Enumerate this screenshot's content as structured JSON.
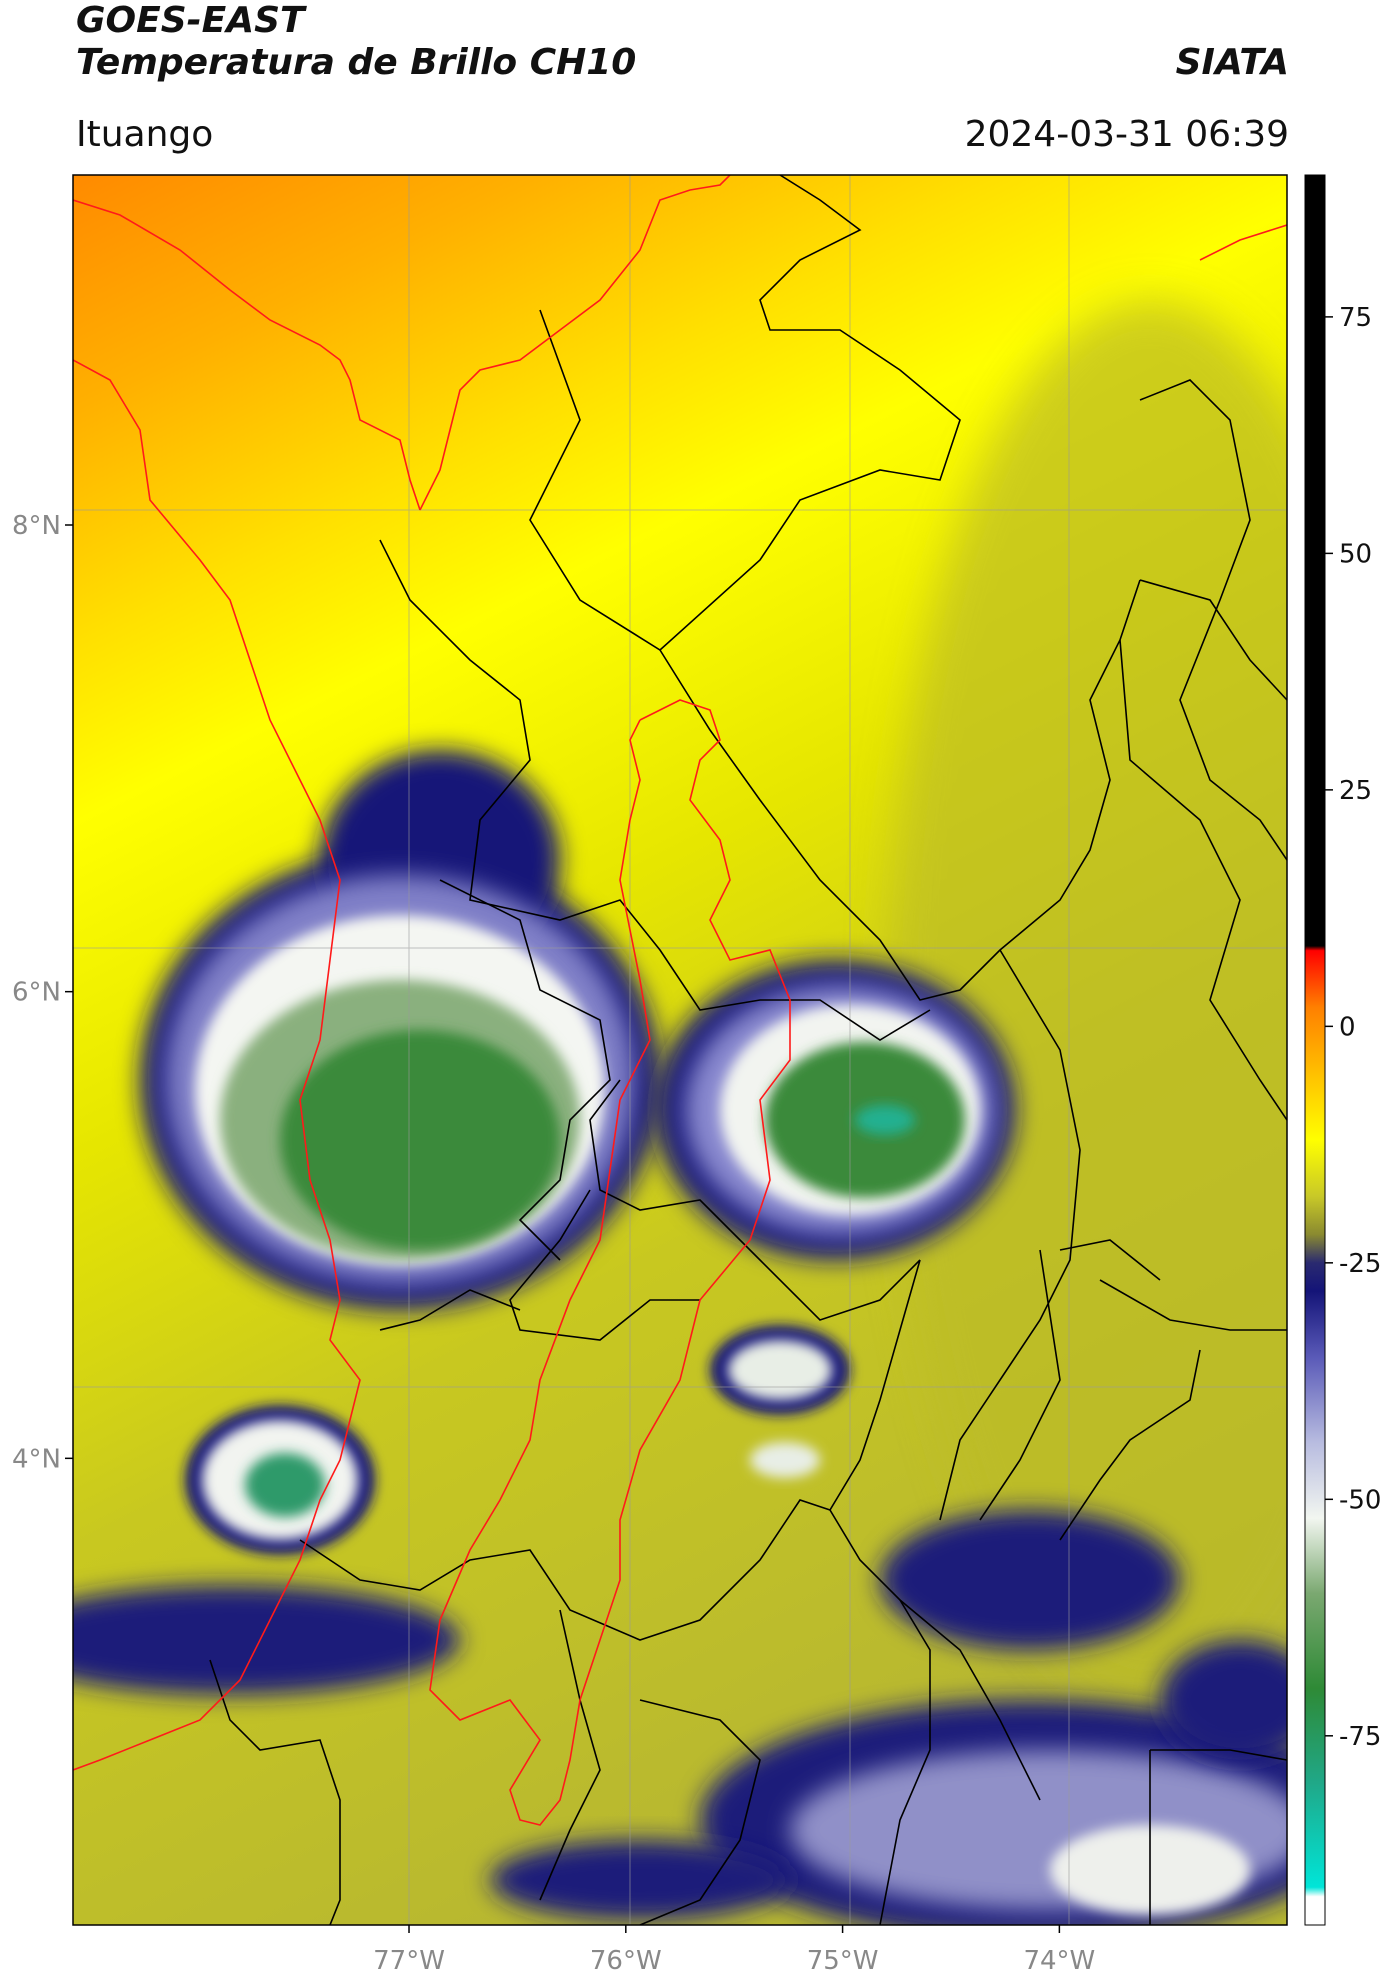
{
  "header": {
    "satellite": "GOES-EAST",
    "product": "Temperatura de Brillo CH10",
    "organization": "SIATA",
    "region": "Ituango",
    "timestamp": "2024-03-31 06:39"
  },
  "map": {
    "lat_range": [
      2.0,
      9.5
    ],
    "lon_range": [
      -78.55,
      -72.95
    ],
    "lat_ticks": [
      {
        "value": 8,
        "label": "8°N"
      },
      {
        "value": 6,
        "label": "6°N"
      },
      {
        "value": 4,
        "label": "4°N"
      }
    ],
    "lon_ticks": [
      {
        "value": -77,
        "label": "77°W"
      },
      {
        "value": -76,
        "label": "76°W"
      },
      {
        "value": -75,
        "label": "75°W"
      },
      {
        "value": -74,
        "label": "74°W"
      }
    ],
    "gridlines": true,
    "boundary_colors": {
      "coastline_and_basin": "#ff0000",
      "departments": "#000000"
    }
  },
  "colorbar": {
    "range": [
      -95,
      90
    ],
    "ticks": [
      {
        "value": 75,
        "label": "75"
      },
      {
        "value": 50,
        "label": "50"
      },
      {
        "value": 25,
        "label": "25"
      },
      {
        "value": 0,
        "label": "0"
      },
      {
        "value": -25,
        "label": "-25"
      },
      {
        "value": -50,
        "label": "-50"
      },
      {
        "value": -75,
        "label": "-75"
      }
    ],
    "stops": [
      {
        "value": -95,
        "color": "#ffffff"
      },
      {
        "value": -92,
        "color": "#ffffff"
      },
      {
        "value": -91,
        "color": "#00e5d8"
      },
      {
        "value": -80,
        "color": "#20a888"
      },
      {
        "value": -70,
        "color": "#2e8a36"
      },
      {
        "value": -60,
        "color": "#7aa870"
      },
      {
        "value": -52,
        "color": "#f2f6f0"
      },
      {
        "value": -44,
        "color": "#b8bce0"
      },
      {
        "value": -35,
        "color": "#5a5ab8"
      },
      {
        "value": -28,
        "color": "#141478"
      },
      {
        "value": -25,
        "color": "#2a2a70"
      },
      {
        "value": -22,
        "color": "#8a8a30"
      },
      {
        "value": -18,
        "color": "#c8c828"
      },
      {
        "value": -12,
        "color": "#ffff00"
      },
      {
        "value": -5,
        "color": "#ffc000"
      },
      {
        "value": 2,
        "color": "#ff8000"
      },
      {
        "value": 8,
        "color": "#ff0000"
      },
      {
        "value": 8.5,
        "color": "#000000"
      },
      {
        "value": 90,
        "color": "#000000"
      }
    ]
  }
}
